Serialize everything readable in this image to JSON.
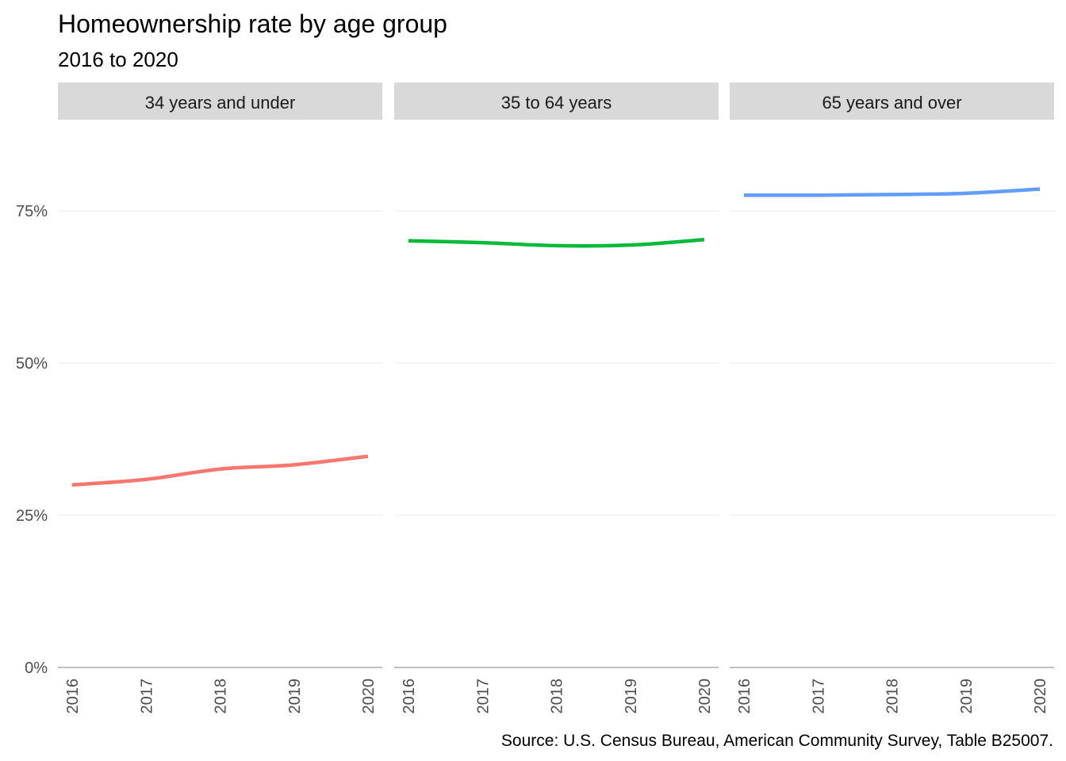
{
  "chart_data": {
    "type": "line",
    "title": "Homeownership rate by age group",
    "subtitle": "2016 to 2020",
    "caption": "Source: U.S. Census Bureau, American Community Survey, Table B25007.",
    "x": [
      "2016",
      "2017",
      "2018",
      "2019",
      "2020"
    ],
    "ylim": [
      0,
      0.9
    ],
    "y_ticks": [
      {
        "value": 0,
        "label": "0%"
      },
      {
        "value": 0.25,
        "label": "25%"
      },
      {
        "value": 0.5,
        "label": "50%"
      },
      {
        "value": 0.75,
        "label": "75%"
      }
    ],
    "grid": true,
    "legend": "none",
    "facets": [
      {
        "name": "34 years and under",
        "color": "#F8766D",
        "values": [
          0.3,
          0.309,
          0.326,
          0.333,
          0.347
        ]
      },
      {
        "name": "35 to 64 years",
        "color": "#00BA38",
        "values": [
          0.701,
          0.698,
          0.693,
          0.694,
          0.703
        ]
      },
      {
        "name": "65 years and over",
        "color": "#619CFF",
        "values": [
          0.776,
          0.776,
          0.777,
          0.779,
          0.786
        ]
      }
    ]
  }
}
